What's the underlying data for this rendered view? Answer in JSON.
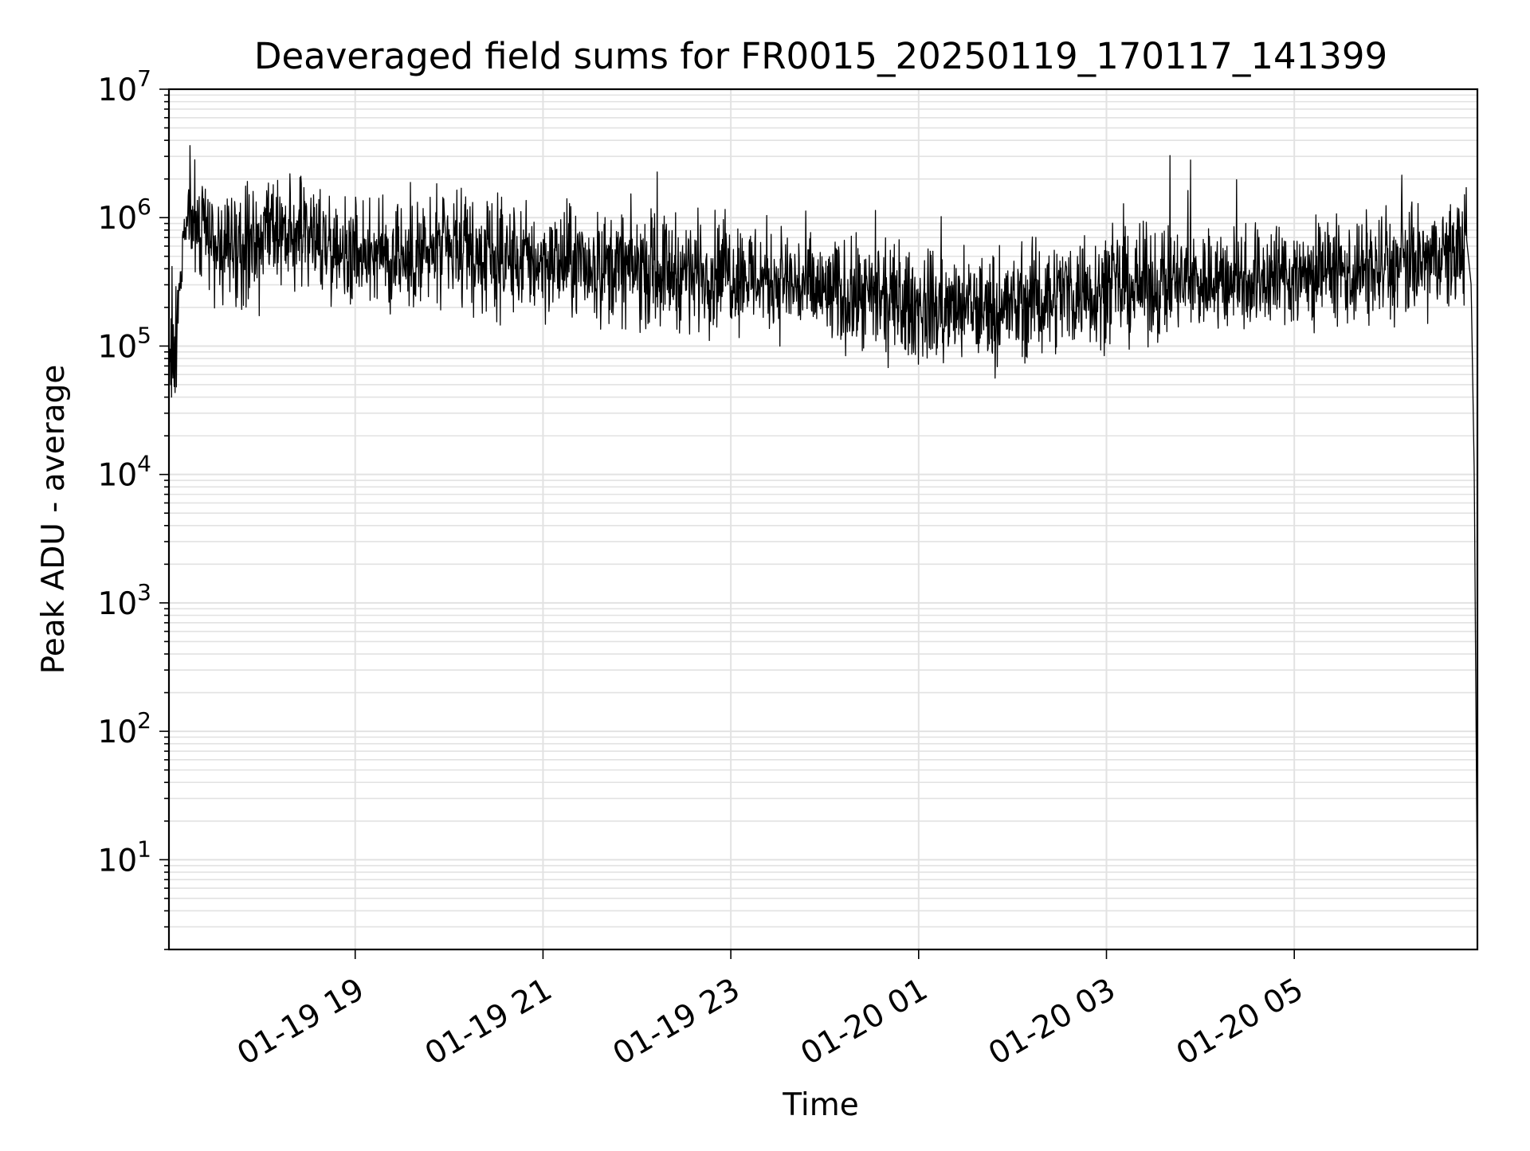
{
  "chart_data": {
    "type": "line",
    "title": "Deaveraged field sums for FR0015_20250119_170117_141399",
    "xlabel": "Time",
    "ylabel": "Peak ADU - average",
    "yscale": "log",
    "ylim": [
      2,
      10000000
    ],
    "xlim": [
      "2025-01-19T17:01",
      "2025-01-20T06:57"
    ],
    "grid": true,
    "x_ticks": [
      {
        "value": "2025-01-19T19:00",
        "label": "01-19 19"
      },
      {
        "value": "2025-01-19T21:00",
        "label": "01-19 21"
      },
      {
        "value": "2025-01-19T23:00",
        "label": "01-19 23"
      },
      {
        "value": "2025-01-20T01:00",
        "label": "01-20 01"
      },
      {
        "value": "2025-01-20T03:00",
        "label": "01-20 03"
      },
      {
        "value": "2025-01-20T05:00",
        "label": "01-20 05"
      }
    ],
    "y_ticks": [
      {
        "value": 10,
        "base": "10",
        "exp": "1"
      },
      {
        "value": 100,
        "base": "10",
        "exp": "2"
      },
      {
        "value": 1000,
        "base": "10",
        "exp": "3"
      },
      {
        "value": 10000,
        "base": "10",
        "exp": "4"
      },
      {
        "value": 100000,
        "base": "10",
        "exp": "5"
      },
      {
        "value": 1000000,
        "base": "10",
        "exp": "6"
      },
      {
        "value": 10000000,
        "base": "10",
        "exp": "7"
      }
    ],
    "series": [
      {
        "color": "#000000",
        "x": [
          "2025-01-19T17:01",
          "2025-01-19T17:05",
          "2025-01-19T17:10",
          "2025-01-19T17:15",
          "2025-01-19T17:30",
          "2025-01-19T17:45",
          "2025-01-19T18:00",
          "2025-01-19T18:15",
          "2025-01-19T18:30",
          "2025-01-19T18:45",
          "2025-01-19T19:00",
          "2025-01-19T19:30",
          "2025-01-19T20:00",
          "2025-01-19T20:30",
          "2025-01-19T21:00",
          "2025-01-19T21:30",
          "2025-01-19T22:00",
          "2025-01-19T22:30",
          "2025-01-19T23:00",
          "2025-01-19T23:30",
          "2025-01-20T00:00",
          "2025-01-20T00:30",
          "2025-01-20T01:00",
          "2025-01-20T01:30",
          "2025-01-20T02:00",
          "2025-01-20T02:30",
          "2025-01-20T03:00",
          "2025-01-20T03:30",
          "2025-01-20T04:00",
          "2025-01-20T04:30",
          "2025-01-20T05:00",
          "2025-01-20T05:30",
          "2025-01-20T06:00",
          "2025-01-20T06:30",
          "2025-01-20T06:45",
          "2025-01-20T06:50",
          "2025-01-20T06:53",
          "2025-01-20T06:55",
          "2025-01-20T06:57"
        ],
        "y": [
          150000,
          80000,
          900000,
          1100000,
          600000,
          550000,
          650000,
          700000,
          750000,
          600000,
          550000,
          500000,
          520000,
          480000,
          460000,
          420000,
          400000,
          380000,
          380000,
          330000,
          260000,
          220000,
          200000,
          190000,
          200000,
          260000,
          280000,
          300000,
          320000,
          340000,
          360000,
          370000,
          400000,
          450000,
          550000,
          700000,
          300000,
          10000,
          4
        ],
        "noise": {
          "min": 40000,
          "max": 5000000
        }
      }
    ]
  }
}
